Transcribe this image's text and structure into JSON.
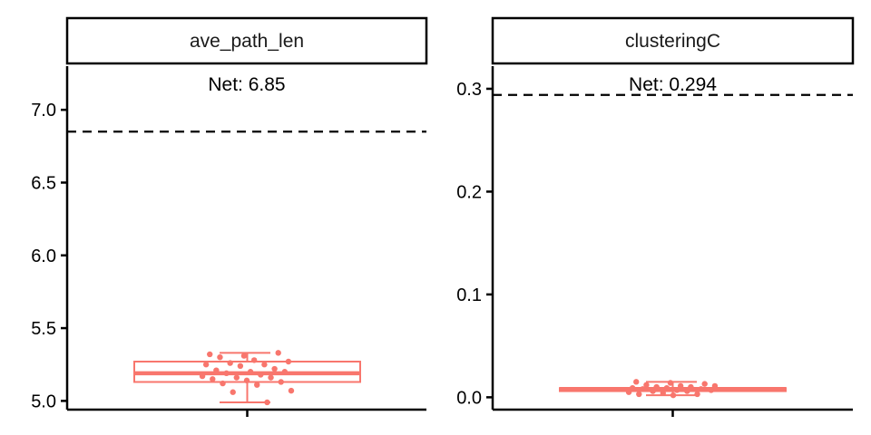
{
  "chart_data": [
    {
      "type": "box",
      "facet_label": "ave_path_len",
      "ylim": [
        4.94,
        7.3
      ],
      "yticks": [
        5.0,
        5.5,
        6.0,
        6.5,
        7.0
      ],
      "ytick_labels": [
        "5.0",
        "5.5",
        "6.0",
        "6.5",
        "7.0"
      ],
      "reference_line": {
        "value": 6.85,
        "style": "dashed",
        "label": "Net: 6.85"
      },
      "box": {
        "q1": 5.13,
        "median": 5.19,
        "q3": 5.27,
        "whisker_low": 4.99,
        "whisker_high": 5.33
      },
      "points": [
        5.32,
        5.31,
        5.33,
        5.3,
        5.28,
        5.27,
        5.26,
        5.25,
        5.25,
        5.24,
        5.22,
        5.21,
        5.2,
        5.2,
        5.19,
        5.18,
        5.17,
        5.16,
        5.16,
        5.15,
        5.14,
        5.13,
        5.12,
        5.11,
        5.07,
        5.06,
        4.99
      ],
      "color": "#F8766D"
    },
    {
      "type": "box",
      "facet_label": "clusteringC",
      "ylim": [
        -0.012,
        0.322
      ],
      "yticks": [
        0.0,
        0.1,
        0.2,
        0.3
      ],
      "ytick_labels": [
        "0.0",
        "0.1",
        "0.2",
        "0.3"
      ],
      "reference_line": {
        "value": 0.294,
        "style": "dashed",
        "label": "Net: 0.294"
      },
      "box": {
        "q1": 0.006,
        "median": 0.008,
        "q3": 0.009,
        "whisker_low": 0.002,
        "whisker_high": 0.015
      },
      "points": [
        0.015,
        0.014,
        0.013,
        0.012,
        0.011,
        0.011,
        0.01,
        0.01,
        0.009,
        0.009,
        0.008,
        0.008,
        0.007,
        0.007,
        0.006,
        0.006,
        0.005,
        0.004,
        0.003,
        0.003,
        0.002
      ],
      "color": "#F8766D"
    }
  ]
}
